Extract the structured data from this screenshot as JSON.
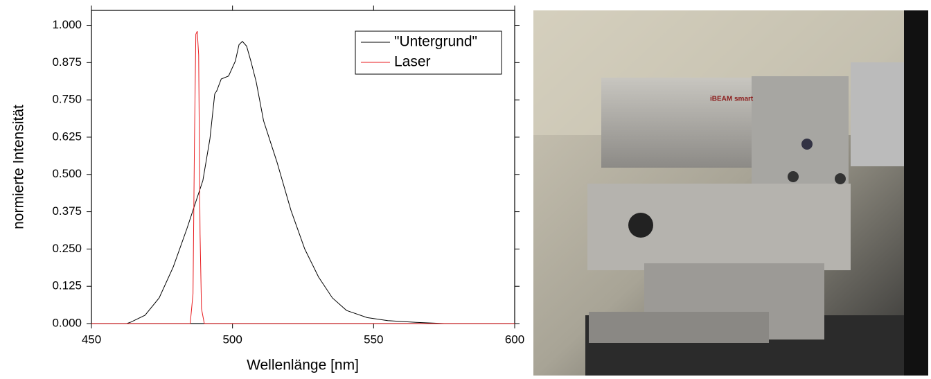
{
  "chart_data": {
    "type": "line",
    "xlabel": "Wellenlänge [nm]",
    "ylabel": "normierte Intensität",
    "xlim": [
      450,
      600
    ],
    "ylim": [
      0,
      1.05
    ],
    "xticks": [
      450,
      500,
      550,
      600
    ],
    "yticks": [
      {
        "value": 0,
        "label": "0.000"
      },
      {
        "value": 0.125,
        "label": "0.125"
      },
      {
        "value": 0.25,
        "label": "0.250"
      },
      {
        "value": 0.375,
        "label": "0.375"
      },
      {
        "value": 0.5,
        "label": "0.500"
      },
      {
        "value": 0.625,
        "label": "0.625"
      },
      {
        "value": 0.75,
        "label": "0.750"
      },
      {
        "value": 0.875,
        "label": "0.875"
      },
      {
        "value": 1,
        "label": "1.000"
      }
    ],
    "legend": "top-right",
    "series": [
      {
        "name": "\"Untergrund\"",
        "color": "#000000",
        "x": [
          450,
          462.5,
          464,
          469,
          474,
          479,
          483.9,
          486,
          489.5,
          492,
          493.7,
          494.4,
          496,
          498.6,
          501,
          502.3,
          503.5,
          505,
          506.5,
          508.4,
          511,
          515.8,
          520.7,
          525.6,
          530.5,
          535.4,
          540.4,
          547.7,
          555,
          565,
          575,
          600
        ],
        "values": [
          0,
          0,
          0.005,
          0.028,
          0.086,
          0.19,
          0.32,
          0.38,
          0.48,
          0.62,
          0.77,
          0.78,
          0.82,
          0.83,
          0.88,
          0.935,
          0.946,
          0.93,
          0.88,
          0.81,
          0.68,
          0.54,
          0.38,
          0.25,
          0.156,
          0.086,
          0.044,
          0.02,
          0.01,
          0.004,
          0,
          0
        ]
      },
      {
        "name": "Laser",
        "color": "#e8191c",
        "x": [
          450,
          485,
          486,
          486.5,
          487,
          487.5,
          488,
          488.5,
          489,
          490,
          600
        ],
        "values": [
          0,
          0,
          0.1,
          0.6,
          0.97,
          0.98,
          0.9,
          0.3,
          0.05,
          0,
          0
        ]
      }
    ]
  }
}
